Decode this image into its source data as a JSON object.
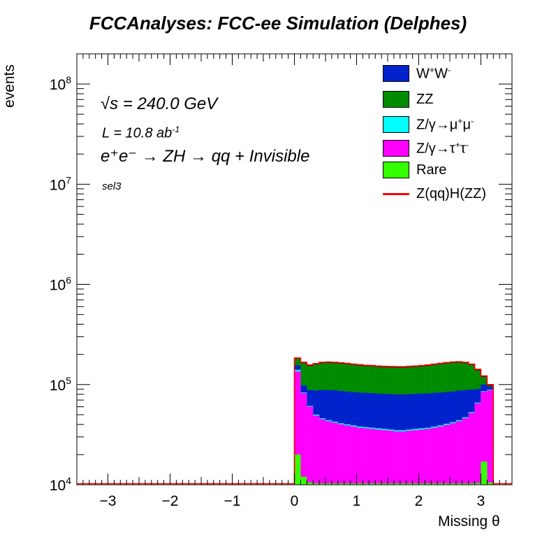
{
  "page": {
    "title": "FCCAnalyses: FCC-ee Simulation (Delphes)"
  },
  "annotations": {
    "sqrt_s": "√s = 240.0 GeV",
    "lumi_text": "L = 10.8 ab",
    "lumi_sup": "-1",
    "process": "e⁺e⁻ → ZH → qq + Invisible",
    "selection": "sel3"
  },
  "legend": {
    "ww": {
      "base": "W",
      "sup1": "+",
      "base2": "W",
      "sup2": "-"
    },
    "zz": "ZZ",
    "zmumu": {
      "base": "Z/γ→μ",
      "sup1": "+",
      "base2": "μ",
      "sup2": "-"
    },
    "ztautau": {
      "base": "Z/γ→τ",
      "sup1": "+",
      "base2": "τ",
      "sup2": "-"
    },
    "rare": "Rare",
    "signal": "Z(qq)H(ZZ)"
  },
  "colors": {
    "ww": "#0022cc",
    "zz": "#008c00",
    "zmumu": "#00ffff",
    "ztautau": "#ff00ff",
    "rare": "#33ff00",
    "signal": "#ff0000"
  },
  "chart_data": {
    "type": "bar",
    "title": "FCCAnalyses: FCC-ee Simulation (Delphes)",
    "xlabel": "Missing θ",
    "ylabel": "events",
    "xlim": [
      -3.5,
      3.5
    ],
    "ylim": [
      10000,
      200000000
    ],
    "yscale": "log",
    "stacked": true,
    "x_ticks": [
      "−3",
      "−2",
      "−1",
      "0",
      "1",
      "2",
      "3"
    ],
    "x_tick_values": [
      -3,
      -2,
      -1,
      0,
      1,
      2,
      3
    ],
    "y_ticks": [
      {
        "value": 10000,
        "base": "10",
        "exp": "4"
      },
      {
        "value": 100000,
        "base": "10",
        "exp": "5"
      },
      {
        "value": 1000000,
        "base": "10",
        "exp": "6"
      },
      {
        "value": 10000000,
        "base": "10",
        "exp": "7"
      },
      {
        "value": 100000000,
        "base": "10",
        "exp": "8"
      }
    ],
    "bins": {
      "edges": [
        0.0,
        0.1,
        0.2,
        0.3,
        0.4,
        0.5,
        0.6,
        0.7,
        0.8,
        0.9,
        1.0,
        1.1,
        1.2,
        1.3,
        1.4,
        1.5,
        1.6,
        1.7,
        1.8,
        1.9,
        2.0,
        2.1,
        2.2,
        2.3,
        2.4,
        2.5,
        2.6,
        2.7,
        2.8,
        2.9,
        3.0,
        3.1,
        3.2
      ],
      "underflow_level": 10000
    },
    "series": [
      {
        "name": "Rare",
        "key": "rare",
        "values": [
          20000,
          12000,
          10500,
          10300,
          10300,
          10300,
          10300,
          10300,
          10300,
          10300,
          10300,
          10300,
          10300,
          10300,
          10300,
          10300,
          10300,
          10300,
          10300,
          10300,
          10300,
          10300,
          10300,
          10300,
          10300,
          10300,
          10300,
          10300,
          10300,
          10400,
          17000,
          10500
        ]
      },
      {
        "name": "Z/γ→τ⁺τ⁻",
        "key": "ztautau",
        "values": [
          135000,
          82000,
          60000,
          49000,
          45000,
          43000,
          41500,
          40000,
          39000,
          38000,
          37000,
          36500,
          36000,
          35500,
          35000,
          34500,
          34000,
          34000,
          34500,
          35000,
          35500,
          36000,
          37000,
          38000,
          39500,
          41000,
          43000,
          46000,
          52000,
          65000,
          85000,
          88000
        ]
      },
      {
        "name": "Z/γ→μ⁺μ⁻",
        "key": "zmumu",
        "values": [
          140000,
          83000,
          61000,
          50000,
          46000,
          44000,
          42500,
          41000,
          40000,
          39000,
          38000,
          37500,
          37000,
          36500,
          36000,
          35500,
          35000,
          35000,
          35500,
          36000,
          36500,
          37000,
          38000,
          39000,
          40500,
          42000,
          44000,
          47000,
          53000,
          66000,
          86000,
          89000
        ]
      },
      {
        "name": "W⁺W⁻",
        "key": "ww",
        "values": [
          155000,
          98000,
          88000,
          87000,
          88000,
          88000,
          87500,
          86000,
          85000,
          84000,
          83000,
          82500,
          82000,
          81000,
          80500,
          80000,
          79500,
          79500,
          80000,
          80500,
          81000,
          81500,
          82500,
          83000,
          84000,
          85000,
          87000,
          88000,
          89000,
          90000,
          100000,
          95000
        ]
      },
      {
        "name": "ZZ",
        "key": "zz",
        "values": [
          182000,
          165000,
          155000,
          160000,
          165000,
          166000,
          165000,
          163000,
          161000,
          158000,
          156000,
          154000,
          153000,
          151000,
          150000,
          149500,
          149000,
          149000,
          150000,
          151000,
          153000,
          155000,
          158000,
          161000,
          164000,
          166000,
          167000,
          165000,
          158000,
          140000,
          120000,
          98000
        ]
      }
    ],
    "signal": {
      "name": "Z(qq)H(ZZ)",
      "key": "signal",
      "values": [
        184000,
        167000,
        157000,
        162000,
        167000,
        168000,
        167000,
        165000,
        163000,
        160000,
        158000,
        156000,
        155000,
        153000,
        152000,
        151500,
        151000,
        151000,
        152000,
        153000,
        155000,
        157000,
        160000,
        163000,
        166000,
        168000,
        169000,
        167000,
        160000,
        142000,
        122000,
        100000
      ]
    },
    "legend_position": "top-right"
  }
}
